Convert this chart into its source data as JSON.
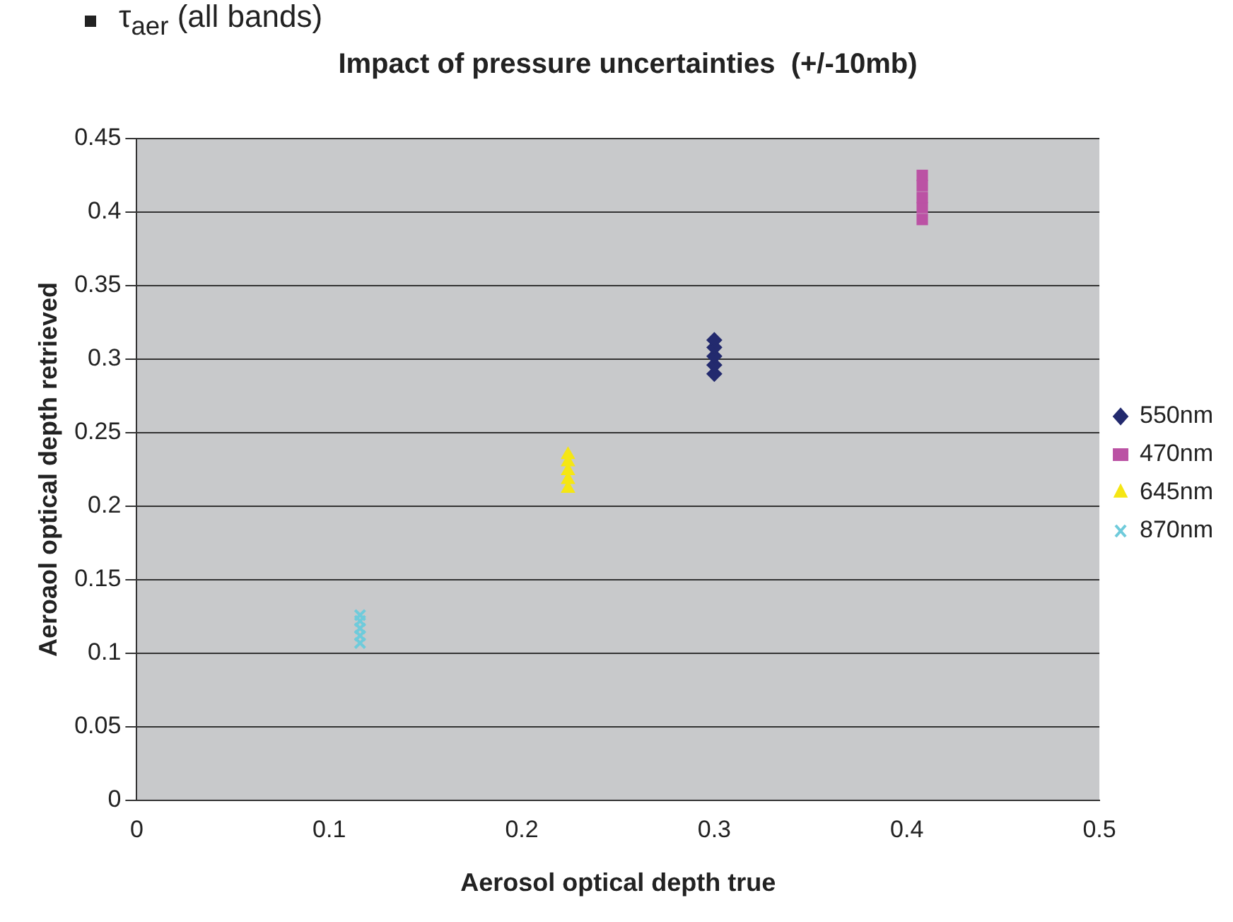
{
  "chart_data": {
    "type": "scatter",
    "title": "Impact of pressure uncertainties  (+/-10mb)",
    "xlabel": "Aerosol optical depth true",
    "ylabel": "Aeroaol optical depth retrieved",
    "annotations": [
      "τ$_{aer}$ (all bands)"
    ],
    "series": [
      {
        "name": "550nm",
        "color": "#232a6e",
        "marker": "diamond",
        "x": [
          0.3,
          0.3,
          0.3,
          0.3,
          0.3
        ],
        "values": [
          0.29,
          0.296,
          0.302,
          0.308,
          0.313
        ]
      },
      {
        "name": "470nm",
        "color": "#bb52a4",
        "marker": "square",
        "x": [
          0.408,
          0.408,
          0.408,
          0.408,
          0.408
        ],
        "values": [
          0.395,
          0.403,
          0.41,
          0.418,
          0.425
        ]
      },
      {
        "name": "645nm",
        "color": "#f5e614",
        "marker": "triangle",
        "x": [
          0.224,
          0.224,
          0.224,
          0.224,
          0.224
        ],
        "values": [
          0.212,
          0.218,
          0.224,
          0.23,
          0.235
        ]
      },
      {
        "name": "870nm",
        "color": "#6fcbdb",
        "marker": "cross",
        "x": [
          0.116,
          0.116,
          0.116,
          0.116,
          0.116
        ],
        "values": [
          0.107,
          0.112,
          0.117,
          0.122,
          0.126
        ]
      }
    ],
    "xlim": [
      0,
      0.5
    ],
    "xticks": [
      0,
      0.1,
      0.2,
      0.3,
      0.4,
      0.5
    ],
    "ylim": [
      0,
      0.45
    ],
    "yticks": [
      0,
      0.05,
      0.1,
      0.15,
      0.2,
      0.25,
      0.3,
      0.35,
      0.4,
      0.45
    ],
    "grid": "y",
    "legend": "right"
  }
}
